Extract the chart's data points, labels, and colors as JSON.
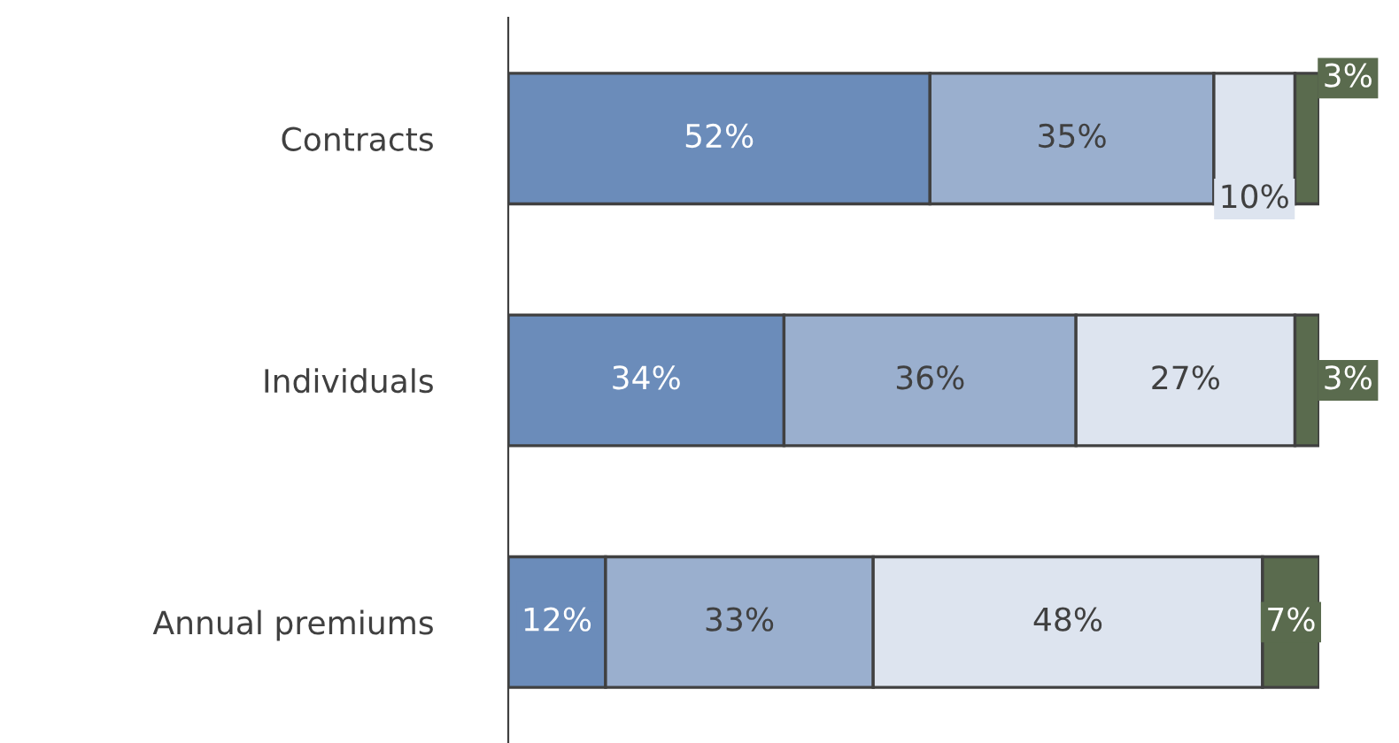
{
  "chart_data": {
    "type": "bar",
    "orientation": "horizontal",
    "stacked": true,
    "data_labels": true,
    "categories": [
      "Contracts",
      "Individuals",
      "Annual premiums"
    ],
    "series": [
      {
        "color": "#6b8cba",
        "values": [
          52,
          34,
          12
        ],
        "value_labels": [
          "52%",
          "34%",
          "12%"
        ]
      },
      {
        "color": "#9aafce",
        "values": [
          35,
          36,
          33
        ],
        "value_labels": [
          "35%",
          "36%",
          "33%"
        ]
      },
      {
        "color": "#dde4ef",
        "values": [
          10,
          27,
          48
        ],
        "value_labels": [
          "10%",
          "27%",
          "48%"
        ]
      },
      {
        "color": "#5a6b4e",
        "values": [
          3,
          3,
          7
        ],
        "value_labels": [
          "3%",
          "3%",
          "7%"
        ]
      }
    ],
    "grid": false,
    "legend": false,
    "tick_labels": "y"
  }
}
